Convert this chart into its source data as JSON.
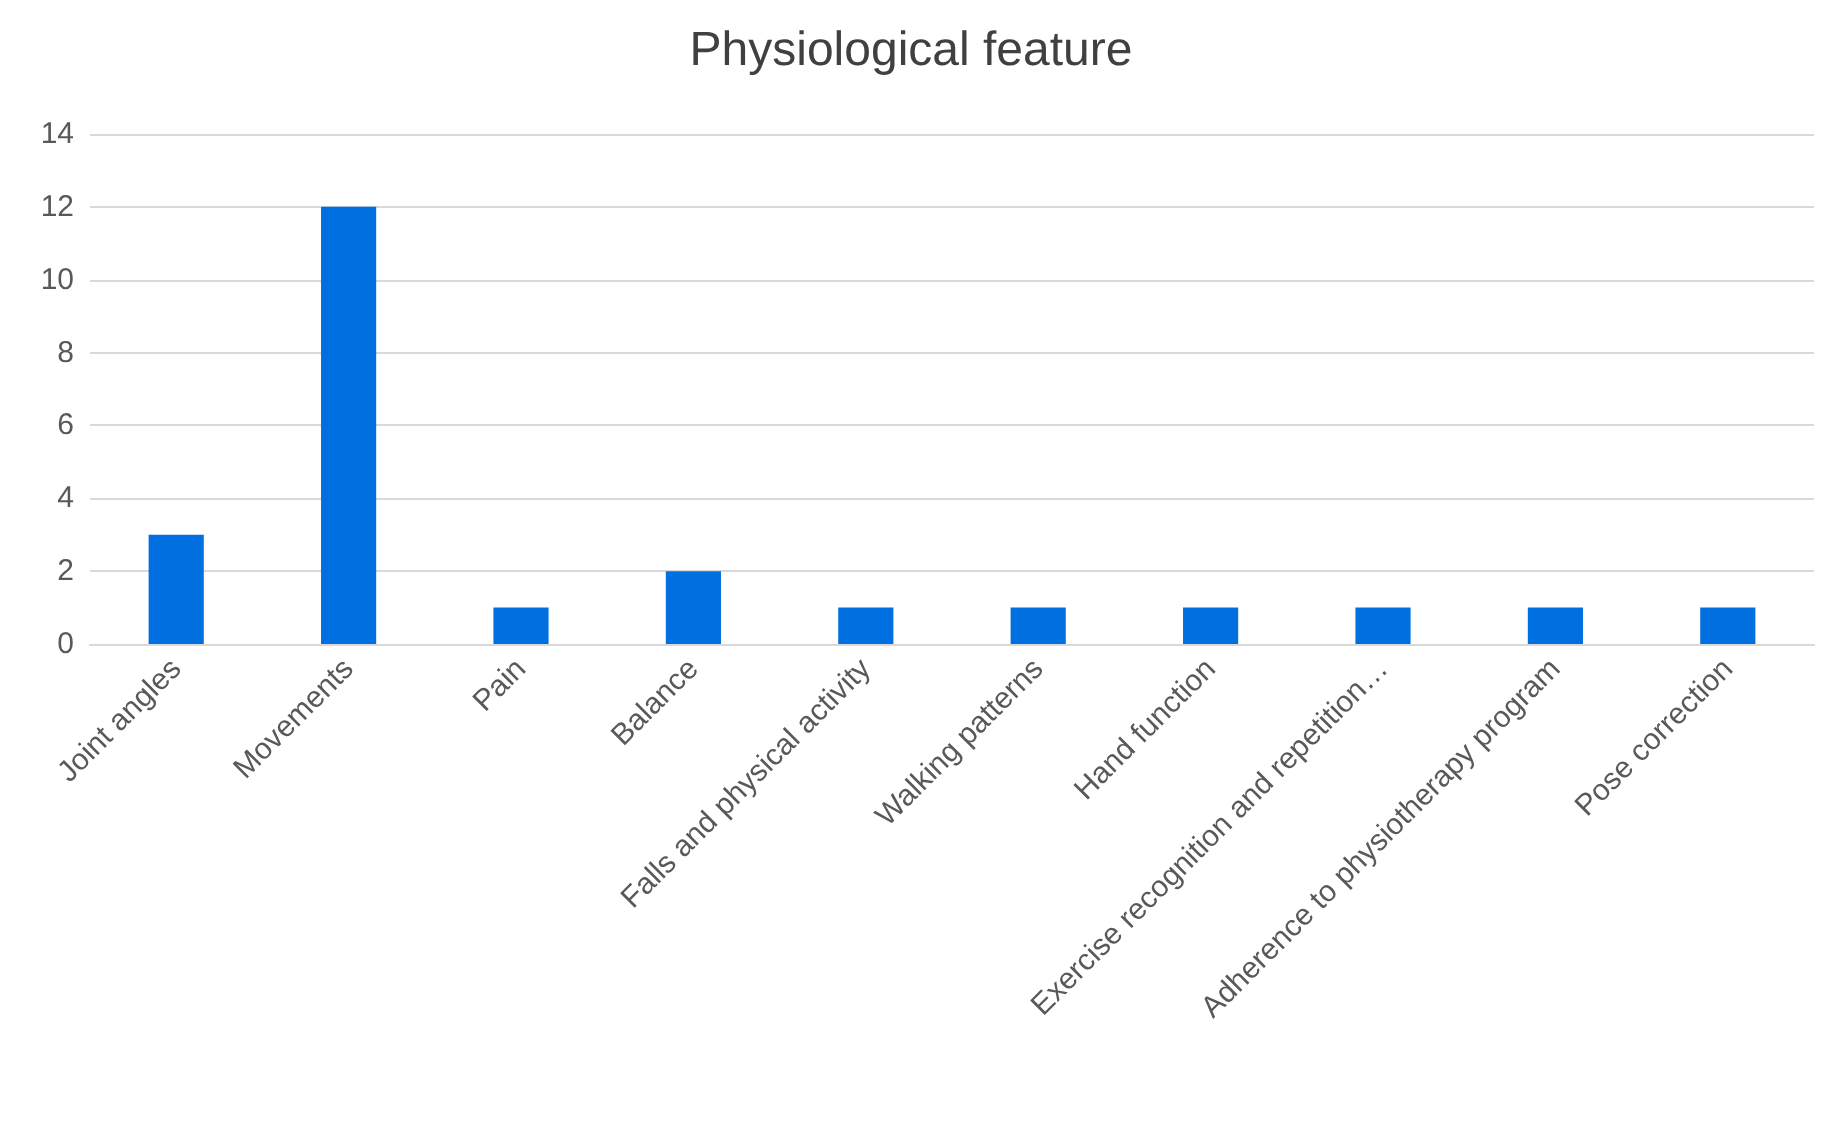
{
  "chart_data": {
    "type": "bar",
    "title": "Physiological feature",
    "categories": [
      "Joint angles",
      "Movements",
      "Pain",
      "Balance",
      "Falls and physical activity",
      "Walking patterns",
      "Hand function",
      "Exercise recognition and repetition…",
      "Adherence to physiotherapy program",
      "Pose correction"
    ],
    "values": [
      3,
      12,
      1,
      2,
      1,
      1,
      1,
      1,
      1,
      1
    ],
    "color": "#0070e0",
    "ylim": [
      0,
      14
    ],
    "yticks": [
      0,
      2,
      4,
      6,
      8,
      10,
      12,
      14
    ],
    "grid": "y"
  }
}
